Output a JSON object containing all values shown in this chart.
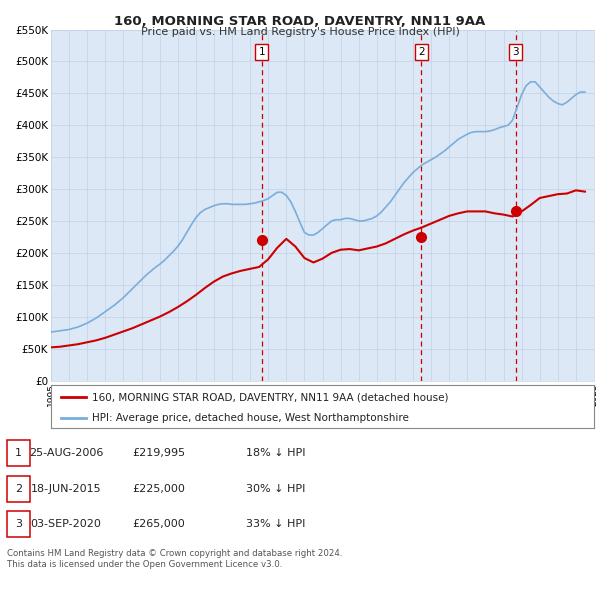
{
  "title": "160, MORNING STAR ROAD, DAVENTRY, NN11 9AA",
  "subtitle": "Price paid vs. HM Land Registry's House Price Index (HPI)",
  "plot_bg_color": "#dce8f5",
  "grid_color": "#c5d5e8",
  "ylim": [
    0,
    550000
  ],
  "yticks": [
    0,
    50000,
    100000,
    150000,
    200000,
    250000,
    300000,
    350000,
    400000,
    450000,
    500000,
    550000
  ],
  "ytick_labels": [
    "£0",
    "£50K",
    "£100K",
    "£150K",
    "£200K",
    "£250K",
    "£300K",
    "£350K",
    "£400K",
    "£450K",
    "£500K",
    "£550K"
  ],
  "xmin": 1995,
  "xmax": 2025,
  "xticks": [
    1995,
    1996,
    1997,
    1998,
    1999,
    2000,
    2001,
    2002,
    2003,
    2004,
    2005,
    2006,
    2007,
    2008,
    2009,
    2010,
    2011,
    2012,
    2013,
    2014,
    2015,
    2016,
    2017,
    2018,
    2019,
    2020,
    2021,
    2022,
    2023,
    2024,
    2025
  ],
  "sale_color": "#cc0000",
  "hpi_color": "#7aaddb",
  "marker_color": "#cc0000",
  "vline_color": "#cc0000",
  "sale_label": "160, MORNING STAR ROAD, DAVENTRY, NN11 9AA (detached house)",
  "hpi_label": "HPI: Average price, detached house, West Northamptonshire",
  "sales": [
    {
      "year": 2006.65,
      "price": 219995,
      "label": "1"
    },
    {
      "year": 2015.46,
      "price": 225000,
      "label": "2"
    },
    {
      "year": 2020.67,
      "price": 265000,
      "label": "3"
    }
  ],
  "table_rows": [
    {
      "num": "1",
      "date": "25-AUG-2006",
      "price": "£219,995",
      "hpi": "18% ↓ HPI"
    },
    {
      "num": "2",
      "date": "18-JUN-2015",
      "price": "£225,000",
      "hpi": "30% ↓ HPI"
    },
    {
      "num": "3",
      "date": "03-SEP-2020",
      "price": "£265,000",
      "hpi": "33% ↓ HPI"
    }
  ],
  "footnote1": "Contains HM Land Registry data © Crown copyright and database right 2024.",
  "footnote2": "This data is licensed under the Open Government Licence v3.0.",
  "hpi_data_x": [
    1995.0,
    1995.25,
    1995.5,
    1995.75,
    1996.0,
    1996.25,
    1996.5,
    1996.75,
    1997.0,
    1997.25,
    1997.5,
    1997.75,
    1998.0,
    1998.25,
    1998.5,
    1998.75,
    1999.0,
    1999.25,
    1999.5,
    1999.75,
    2000.0,
    2000.25,
    2000.5,
    2000.75,
    2001.0,
    2001.25,
    2001.5,
    2001.75,
    2002.0,
    2002.25,
    2002.5,
    2002.75,
    2003.0,
    2003.25,
    2003.5,
    2003.75,
    2004.0,
    2004.25,
    2004.5,
    2004.75,
    2005.0,
    2005.25,
    2005.5,
    2005.75,
    2006.0,
    2006.25,
    2006.5,
    2006.75,
    2007.0,
    2007.25,
    2007.5,
    2007.75,
    2008.0,
    2008.25,
    2008.5,
    2008.75,
    2009.0,
    2009.25,
    2009.5,
    2009.75,
    2010.0,
    2010.25,
    2010.5,
    2010.75,
    2011.0,
    2011.25,
    2011.5,
    2011.75,
    2012.0,
    2012.25,
    2012.5,
    2012.75,
    2013.0,
    2013.25,
    2013.5,
    2013.75,
    2014.0,
    2014.25,
    2014.5,
    2014.75,
    2015.0,
    2015.25,
    2015.5,
    2015.75,
    2016.0,
    2016.25,
    2016.5,
    2016.75,
    2017.0,
    2017.25,
    2017.5,
    2017.75,
    2018.0,
    2018.25,
    2018.5,
    2018.75,
    2019.0,
    2019.25,
    2019.5,
    2019.75,
    2020.0,
    2020.25,
    2020.5,
    2020.75,
    2021.0,
    2021.25,
    2021.5,
    2021.75,
    2022.0,
    2022.25,
    2022.5,
    2022.75,
    2023.0,
    2023.25,
    2023.5,
    2023.75,
    2024.0,
    2024.25,
    2024.5
  ],
  "hpi_data_y": [
    76000,
    77000,
    78000,
    79000,
    80000,
    82000,
    84000,
    87000,
    90000,
    94000,
    98000,
    103000,
    108000,
    113000,
    118000,
    124000,
    130000,
    137000,
    144000,
    151000,
    158000,
    165000,
    171000,
    177000,
    182000,
    188000,
    195000,
    202000,
    210000,
    220000,
    232000,
    244000,
    255000,
    263000,
    268000,
    271000,
    274000,
    276000,
    277000,
    277000,
    276000,
    276000,
    276000,
    276000,
    277000,
    278000,
    280000,
    282000,
    285000,
    290000,
    295000,
    295000,
    290000,
    280000,
    265000,
    248000,
    232000,
    228000,
    228000,
    232000,
    238000,
    244000,
    250000,
    252000,
    252000,
    254000,
    254000,
    252000,
    250000,
    250000,
    252000,
    254000,
    258000,
    264000,
    272000,
    280000,
    290000,
    300000,
    310000,
    318000,
    326000,
    332000,
    338000,
    342000,
    346000,
    350000,
    355000,
    360000,
    366000,
    372000,
    378000,
    382000,
    386000,
    389000,
    390000,
    390000,
    390000,
    391000,
    393000,
    396000,
    398000,
    400000,
    408000,
    428000,
    448000,
    462000,
    468000,
    468000,
    460000,
    452000,
    444000,
    438000,
    434000,
    432000,
    436000,
    442000,
    448000,
    452000,
    452000
  ],
  "sale_data_x": [
    1995.0,
    1995.5,
    1996.0,
    1996.5,
    1997.0,
    1997.5,
    1998.0,
    1998.5,
    1999.0,
    1999.5,
    2000.0,
    2000.5,
    2001.0,
    2001.5,
    2002.0,
    2002.5,
    2003.0,
    2003.5,
    2004.0,
    2004.5,
    2005.0,
    2005.5,
    2006.0,
    2006.5,
    2007.0,
    2007.5,
    2008.0,
    2008.5,
    2009.0,
    2009.5,
    2010.0,
    2010.5,
    2011.0,
    2011.5,
    2012.0,
    2012.5,
    2013.0,
    2013.5,
    2014.0,
    2014.5,
    2015.0,
    2015.5,
    2016.0,
    2016.5,
    2017.0,
    2017.5,
    2018.0,
    2018.5,
    2019.0,
    2019.5,
    2020.0,
    2020.5,
    2021.0,
    2021.5,
    2022.0,
    2022.5,
    2023.0,
    2023.5,
    2024.0,
    2024.5
  ],
  "sale_data_y": [
    52000,
    53000,
    55000,
    57000,
    60000,
    63000,
    67000,
    72000,
    77000,
    82000,
    88000,
    94000,
    100000,
    107000,
    115000,
    124000,
    134000,
    145000,
    155000,
    163000,
    168000,
    172000,
    175000,
    178000,
    190000,
    208000,
    222000,
    210000,
    192000,
    185000,
    191000,
    200000,
    205000,
    206000,
    204000,
    207000,
    210000,
    215000,
    222000,
    229000,
    235000,
    240000,
    246000,
    252000,
    258000,
    262000,
    265000,
    265000,
    265000,
    262000,
    260000,
    257000,
    265000,
    275000,
    286000,
    289000,
    292000,
    293000,
    298000,
    296000
  ]
}
